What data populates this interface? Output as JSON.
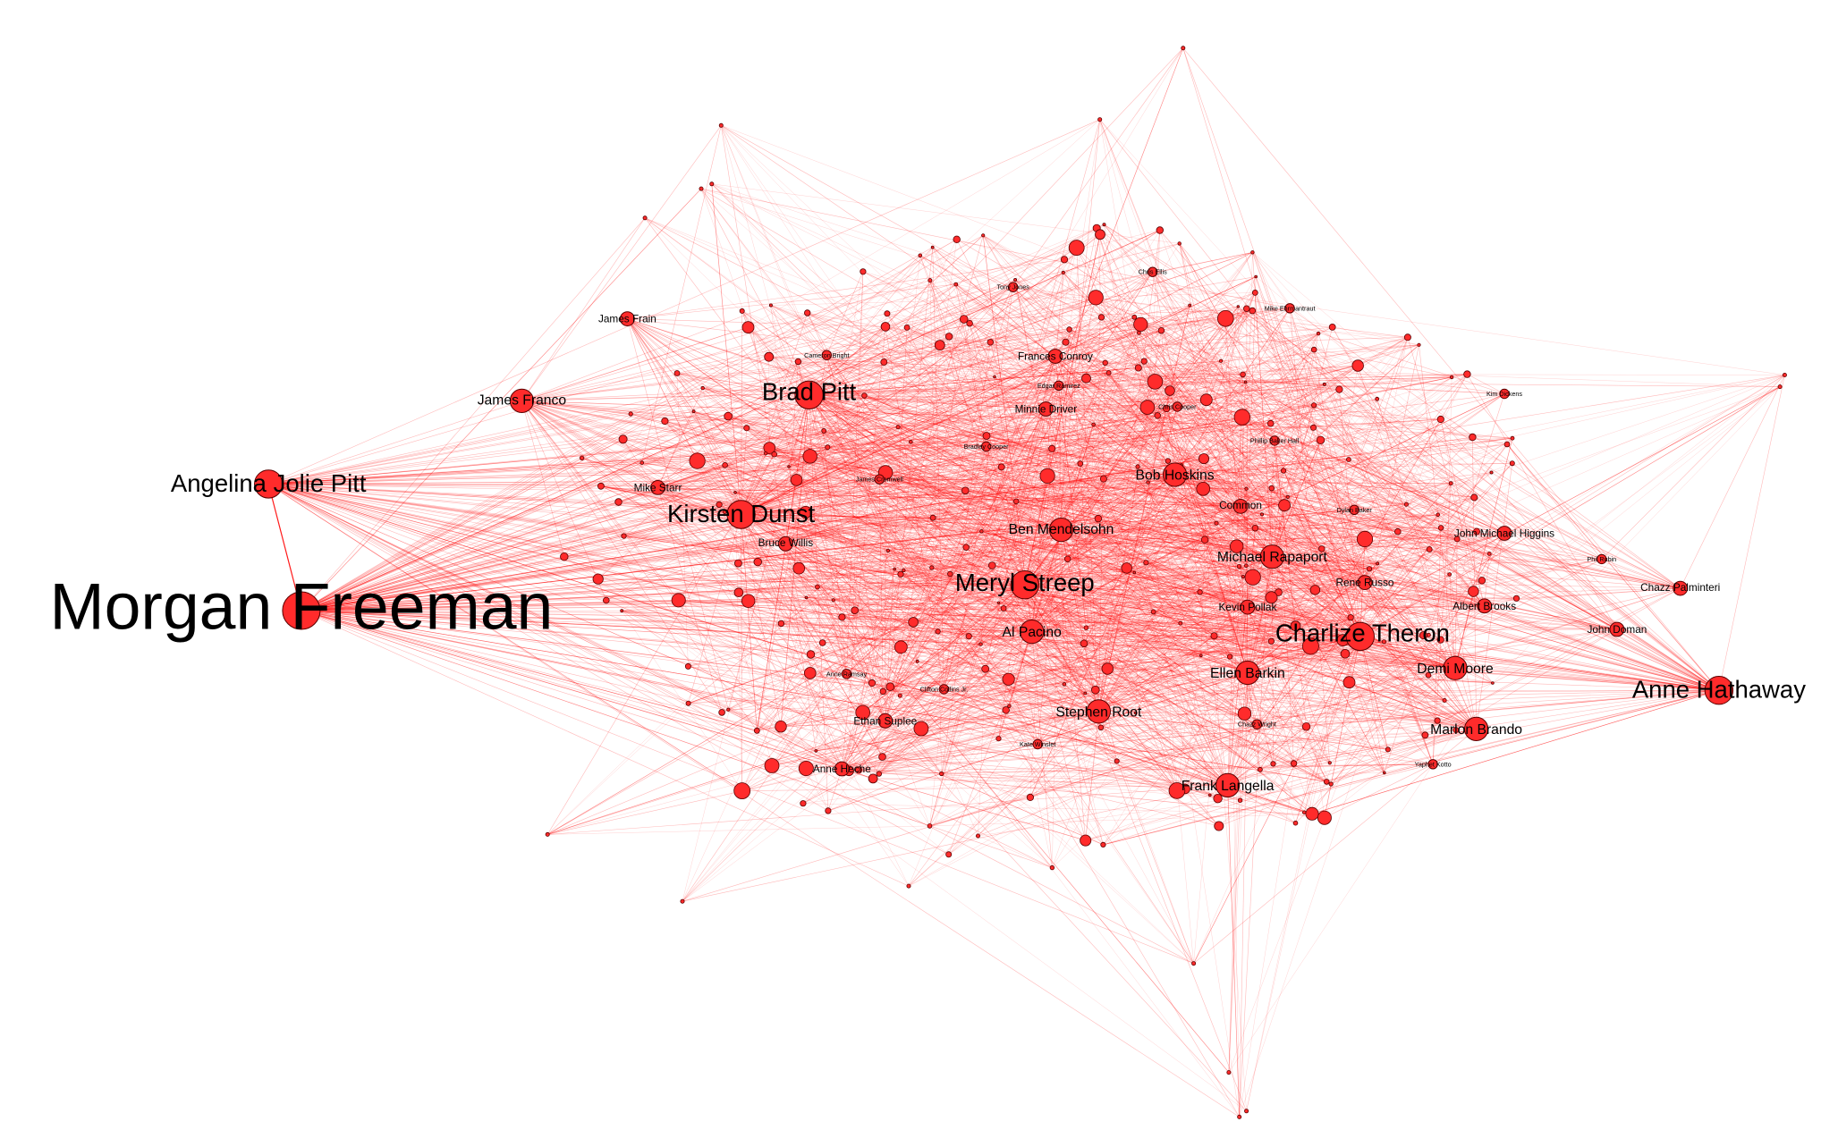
{
  "colors": {
    "background": "#ffffff",
    "node_fill": "#ff2b2b",
    "node_stroke": "#5a0000",
    "edge": "#ff0000",
    "label": "#000000"
  },
  "nodes": [
    {
      "id": "morgan-freeman",
      "label": "Morgan Freeman",
      "size": "huge"
    },
    {
      "id": "angelina-jolie-pitt",
      "label": "Angelina Jolie Pitt",
      "size": "large"
    },
    {
      "id": "charlize-theron",
      "label": "Charlize Theron",
      "size": "large"
    },
    {
      "id": "meryl-streep",
      "label": "Meryl Streep",
      "size": "large"
    },
    {
      "id": "kirsten-dunst",
      "label": "Kirsten Dunst",
      "size": "large"
    },
    {
      "id": "brad-pitt",
      "label": "Brad Pitt",
      "size": "large"
    },
    {
      "id": "anne-hathaway",
      "label": "Anne Hathaway",
      "size": "large"
    },
    {
      "id": "stephen-root",
      "label": "Stephen Root",
      "size": "medium"
    },
    {
      "id": "ben-mendelsohn",
      "label": "Ben Mendelsohn",
      "size": "medium"
    },
    {
      "id": "bob-hoskins",
      "label": "Bob Hoskins",
      "size": "medium"
    },
    {
      "id": "james-franco",
      "label": "James Franco",
      "size": "medium"
    },
    {
      "id": "al-pacino",
      "label": "Al Pacino",
      "size": "medium"
    },
    {
      "id": "frank-langella",
      "label": "Frank Langella",
      "size": "medium"
    },
    {
      "id": "demi-moore",
      "label": "Demi Moore",
      "size": "medium"
    },
    {
      "id": "marlon-brando",
      "label": "Marlon Brando",
      "size": "medium"
    },
    {
      "id": "michael-rapaport",
      "label": "Michael Rapaport",
      "size": "medium"
    },
    {
      "id": "ellen-barkin",
      "label": "Ellen Barkin",
      "size": "medium"
    },
    {
      "id": "kevin-pollak",
      "label": "Kevin Pollak",
      "size": "small"
    },
    {
      "id": "rene-russo",
      "label": "Rene Russo",
      "size": "small"
    },
    {
      "id": "common",
      "label": "Common",
      "size": "small"
    },
    {
      "id": "john-michael-higgins",
      "label": "John Michael Higgins",
      "size": "small"
    },
    {
      "id": "albert-brooks",
      "label": "Albert Brooks",
      "size": "small"
    },
    {
      "id": "chazz-palminteri",
      "label": "Chazz Palminteri",
      "size": "small"
    },
    {
      "id": "john-doman",
      "label": "John Doman",
      "size": "small"
    },
    {
      "id": "james-frain",
      "label": "James Frain",
      "size": "small"
    },
    {
      "id": "mike-starr",
      "label": "Mike Starr",
      "size": "small"
    },
    {
      "id": "bruce-willis",
      "label": "Bruce Willis",
      "size": "small"
    },
    {
      "id": "minnie-driver",
      "label": "Minnie Driver",
      "size": "small"
    },
    {
      "id": "frances-conroy",
      "label": "Frances Conroy",
      "size": "small"
    },
    {
      "id": "edgar-ramirez",
      "label": "Edgar Ramirez",
      "size": "tiny"
    },
    {
      "id": "bradley-cooper",
      "label": "Bradley Cooper",
      "size": "tiny"
    },
    {
      "id": "anne-heche",
      "label": "Anne Heche",
      "size": "small"
    },
    {
      "id": "ethan-suplee",
      "label": "Ethan Suplee",
      "size": "small"
    },
    {
      "id": "clifton-collins-jr",
      "label": "Clifton Collins Jr.",
      "size": "tiny"
    },
    {
      "id": "dylan-baker",
      "label": "Dylan Baker",
      "size": "tiny"
    },
    {
      "id": "yaphet-kotto",
      "label": "Yaphet Kotto",
      "size": "tiny"
    },
    {
      "id": "chris-cooper",
      "label": "Chris Cooper",
      "size": "tiny"
    },
    {
      "id": "chazz-wright",
      "label": "Chazz Wright",
      "size": "tiny"
    },
    {
      "id": "phillip-baker-hall",
      "label": "Phillip Baker Hall",
      "size": "tiny"
    },
    {
      "id": "cameron-bright",
      "label": "Cameron Bright",
      "size": "tiny"
    },
    {
      "id": "james-cromwell",
      "label": "James Cromwell",
      "size": "tiny"
    },
    {
      "id": "chris-ellis",
      "label": "Chris Ellis",
      "size": "tiny"
    },
    {
      "id": "kate-winslet",
      "label": "Kate Winslet",
      "size": "tiny"
    },
    {
      "id": "anne-ramsay",
      "label": "Anne Ramsay",
      "size": "tiny"
    },
    {
      "id": "phil-rubin",
      "label": "Phil Rubin",
      "size": "tiny"
    },
    {
      "id": "mike-ehrmantraut",
      "label": "Mike Ehrmantraut",
      "size": "tiny"
    },
    {
      "id": "tony-jones",
      "label": "Tony Jones",
      "size": "tiny"
    },
    {
      "id": "kim-dickens",
      "label": "Kim Dickens",
      "size": "tiny"
    }
  ]
}
